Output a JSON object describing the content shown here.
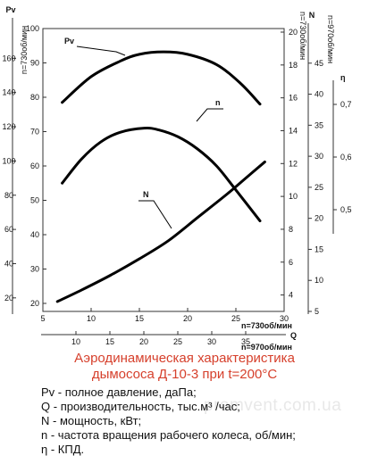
{
  "chart_data": {
    "type": "line",
    "title": "Аэродинамическая характеристика дымососа Д-10-3 при t=200°C",
    "flow_axes": [
      {
        "name": "n=730об/мин",
        "min": 5,
        "max": 30,
        "ticks": [
          5,
          10,
          15,
          20,
          25,
          30
        ],
        "label": "n=730об/мин"
      },
      {
        "name": "n=970об/мин",
        "min": 5,
        "max": 35,
        "ticks": [
          10,
          15,
          20,
          25,
          30,
          35
        ],
        "label": "n=970об/мин"
      }
    ],
    "x_unit_label": "Q",
    "axes": {
      "pv_970": {
        "label": "Pv",
        "sublabel": "",
        "ticks": [
          20,
          40,
          60,
          80,
          100,
          120,
          140,
          160
        ],
        "min": 10,
        "max": 180
      },
      "pv_730": {
        "label": "",
        "sublabel": "n=730об/мин",
        "ticks": [
          20,
          30,
          40,
          50,
          60,
          70,
          80,
          90,
          100
        ],
        "min": 20,
        "max": 100
      },
      "n_730": {
        "label": "N",
        "sublabel": "n=730об/мин",
        "ticks": [
          4,
          6,
          8,
          10,
          12,
          14,
          16,
          18,
          20
        ],
        "min": 3,
        "max": 20
      },
      "n_970": {
        "label": "",
        "sublabel": "n=970об/мин",
        "ticks": [
          5,
          10,
          15,
          20,
          25,
          30,
          35,
          40,
          45
        ],
        "min": 5,
        "max": 50
      },
      "eta": {
        "label": "η",
        "sublabel": "",
        "ticks": [
          0.5,
          0.6,
          0.7
        ],
        "min": 0.45,
        "max": 0.75
      }
    },
    "series": [
      {
        "name": "Pv",
        "axis": "pv_730",
        "x": [
          7,
          10,
          13,
          15,
          17.5,
          20,
          23,
          25.5,
          27.5
        ],
        "y": [
          78.5,
          86,
          90.5,
          92.5,
          93.2,
          92.5,
          89.5,
          84,
          78
        ]
      },
      {
        "name": "η",
        "axis": "pv_730",
        "x": [
          7,
          9,
          11,
          13,
          15.5,
          17,
          19,
          21,
          23,
          25,
          27.5
        ],
        "y": [
          55,
          62,
          67,
          69.8,
          71,
          70.5,
          68.5,
          65,
          60,
          53,
          44
        ]
      },
      {
        "name": "N",
        "axis": "n_730",
        "x": [
          6.5,
          9,
          12,
          15,
          18,
          21,
          24,
          26,
          28
        ],
        "y": [
          3.6,
          4.3,
          5.2,
          6.2,
          7.3,
          8.7,
          10.1,
          11.1,
          12.1
        ]
      }
    ],
    "grid": false,
    "legend": [
      {
        "key": "Pv",
        "text": "- полное давление, даПа;"
      },
      {
        "key": "Q",
        "text": "- производительность, тыс.м³ /час;"
      },
      {
        "key": "N",
        "text": "- мощность, кВт;"
      },
      {
        "key": "n",
        "text": "- частота вращения рабочего колеса, об/мин;"
      },
      {
        "key": "η",
        "text": "- КПД."
      }
    ]
  },
  "title_lines": [
    "Аэродинамическая характеристика",
    "дымососа Д-10-3 при t=200°C"
  ],
  "watermark": "promvent.com.ua",
  "colors": {
    "tick_red": "#d23c2a",
    "title": "#d6402c",
    "curve": "#000000"
  }
}
